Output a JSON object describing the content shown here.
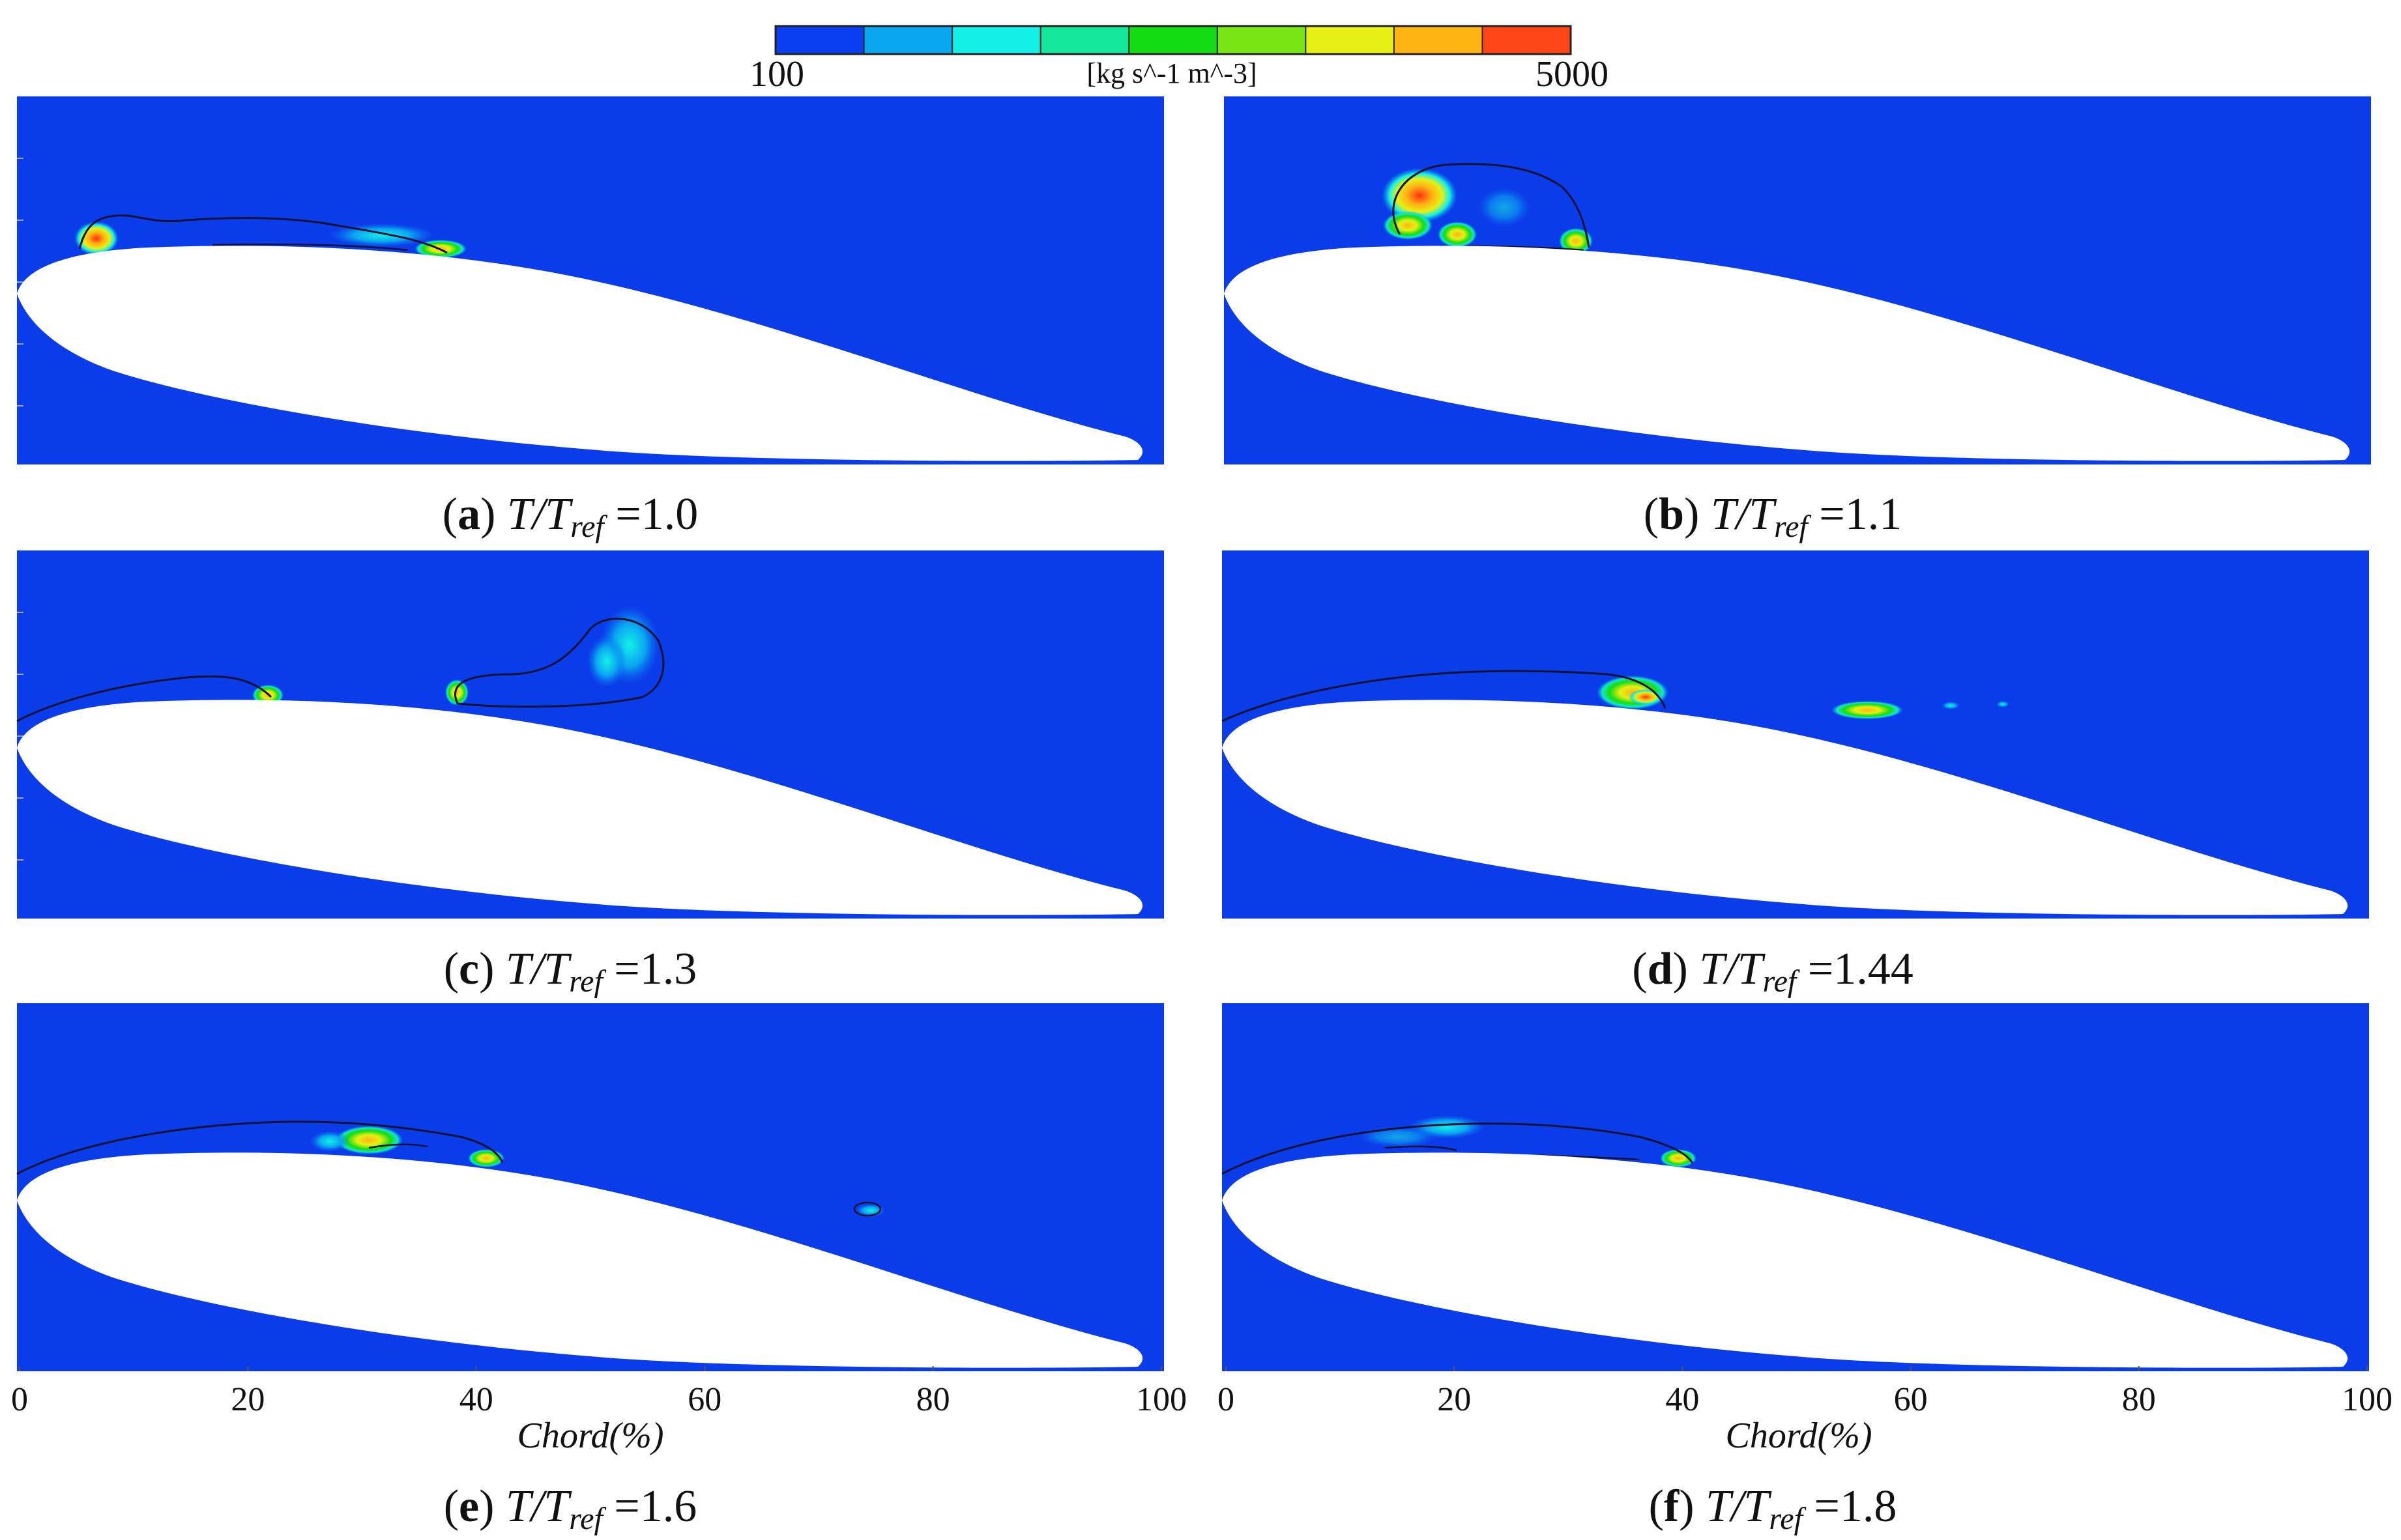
{
  "colorbar": {
    "min_label": "100",
    "max_label": "5000",
    "unit_label": "[kg s^-1 m^-3]",
    "colors": [
      "#0a3df0",
      "#0aa6f0",
      "#14f0e6",
      "#14e69c",
      "#14dc14",
      "#78e614",
      "#e6f014",
      "#ffb414",
      "#ff4614"
    ]
  },
  "panels": [
    {
      "letter": "a",
      "value": "=1.0"
    },
    {
      "letter": "b",
      "value": "=1.1"
    },
    {
      "letter": "c",
      "value": "=1.3"
    },
    {
      "letter": "d",
      "value": "=1.44"
    },
    {
      "letter": "e",
      "value": "=1.6"
    },
    {
      "letter": "f",
      "value": "=1.8"
    }
  ],
  "caption_symbol": {
    "T": "T",
    "slash": "/",
    "ref": "ref"
  },
  "x_axis": {
    "label": "Chord(%)",
    "ticks": [
      "0",
      "20",
      "40",
      "60",
      "80",
      "100"
    ]
  },
  "colors": {
    "field": "#0b3cea",
    "airfoil": "#ffffff",
    "contour_line": "#111133"
  }
}
